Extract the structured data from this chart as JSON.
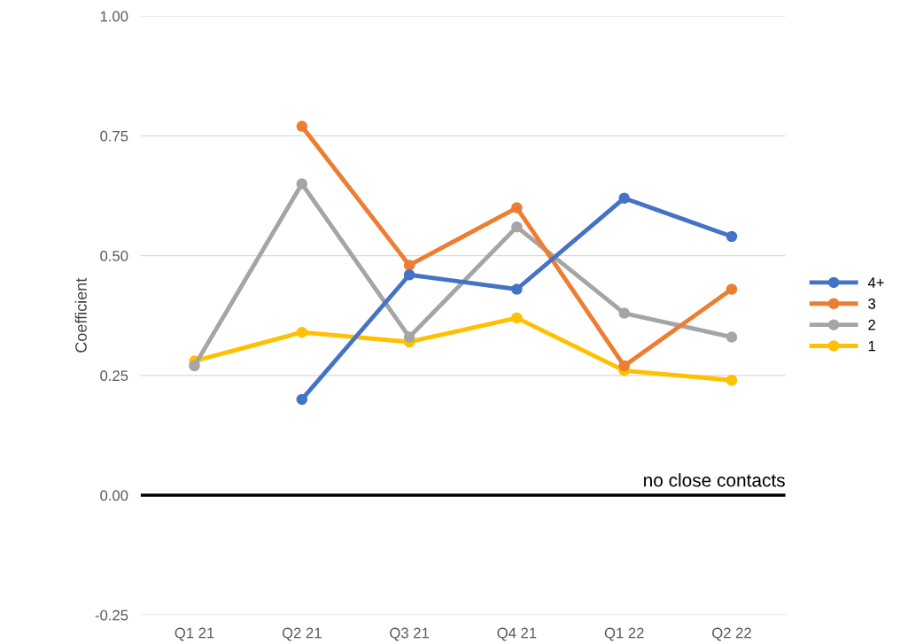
{
  "chart_data": {
    "type": "line",
    "ylabel": "Coefficient",
    "categories": [
      "Q1 21",
      "Q2 21",
      "Q3 21",
      "Q4 21",
      "Q1 22",
      "Q2 22"
    ],
    "series": [
      {
        "name": "4+",
        "color": "#4472c4",
        "values": [
          null,
          0.2,
          0.46,
          0.43,
          0.62,
          0.54
        ]
      },
      {
        "name": "3",
        "color": "#ed7d31",
        "values": [
          null,
          0.77,
          0.48,
          0.6,
          0.27,
          0.43
        ]
      },
      {
        "name": "2",
        "color": "#a5a5a5",
        "values": [
          0.27,
          0.65,
          0.33,
          0.56,
          0.38,
          0.33
        ]
      },
      {
        "name": "1",
        "color": "#ffc000",
        "values": [
          0.28,
          0.34,
          0.32,
          0.37,
          0.26,
          0.24
        ]
      }
    ],
    "ylim": [
      -0.25,
      1.0
    ],
    "yticks": [
      {
        "value": -0.25,
        "label": "-0.25"
      },
      {
        "value": 0,
        "label": "0.00"
      },
      {
        "value": 0.25,
        "label": "0.25"
      },
      {
        "value": 0.5,
        "label": "0.50"
      },
      {
        "value": 0.75,
        "label": "0.75"
      },
      {
        "value": 1.0,
        "label": "1.00"
      }
    ],
    "ref_lines": [
      {
        "axis": "y",
        "value": 0,
        "label": "no close contacts",
        "color": "#000000"
      }
    ],
    "grid": "y",
    "legend": "right",
    "marker": "circle",
    "line_style": "solid"
  }
}
